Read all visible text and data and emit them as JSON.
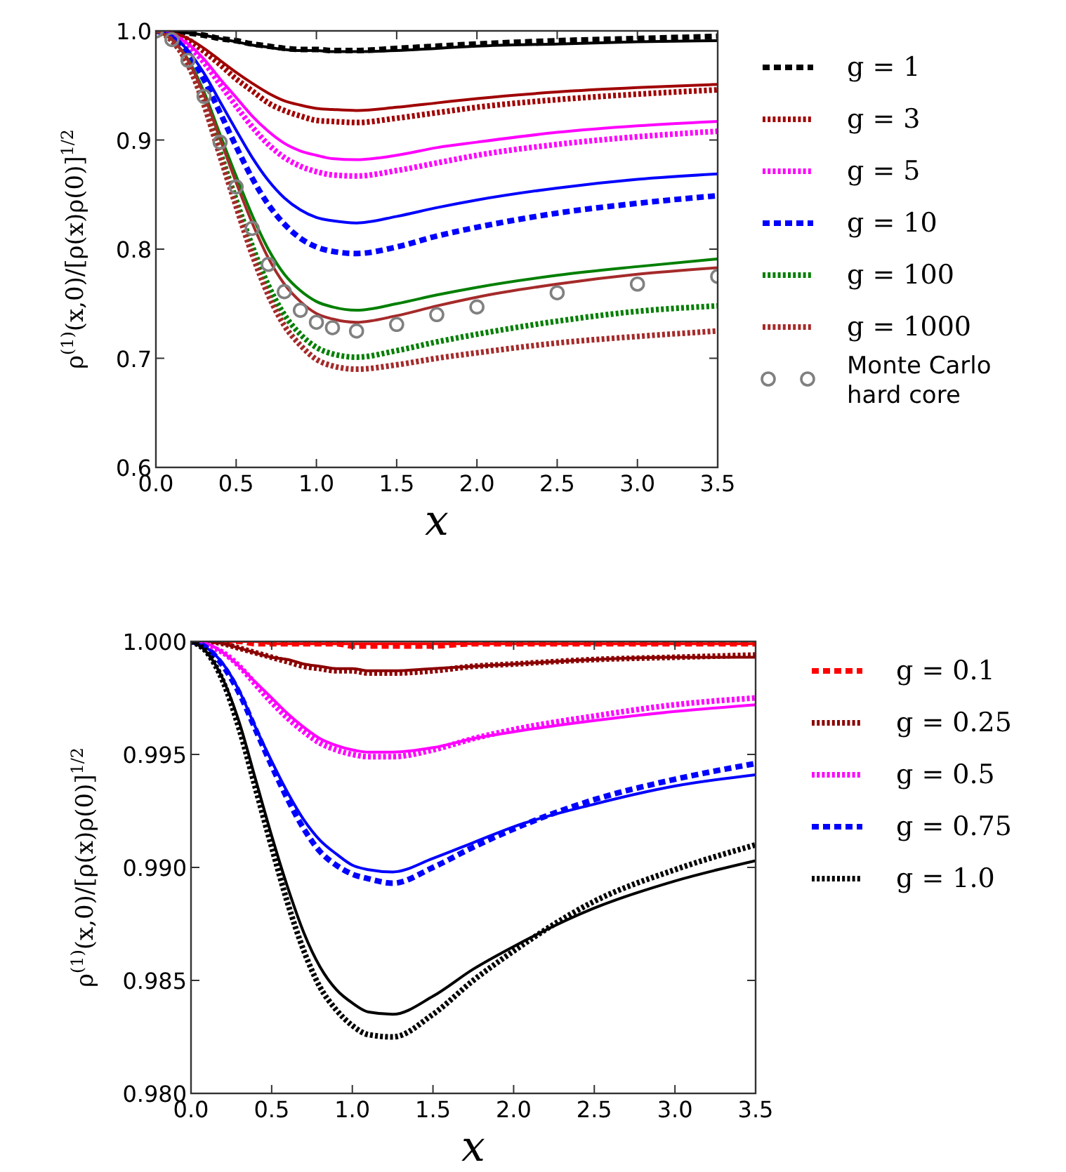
{
  "chart_data": [
    {
      "type": "line",
      "xlabel": "x",
      "ylabel": "ρ$^{(1)}$(x,0)/[ρ(x)ρ(0)]$^{1/2}$",
      "xlim": [
        0,
        3.5
      ],
      "ylim": [
        0.6,
        1.0
      ],
      "xticks": [
        {
          "value": 0,
          "label": "0.0"
        },
        0.5,
        {
          "value": 1,
          "label": "1.0"
        },
        1.5,
        {
          "value": 2,
          "label": "2.0"
        },
        2.5,
        {
          "value": 3,
          "label": "3.0"
        },
        3.5
      ],
      "yticks": [
        0.6,
        0.7,
        0.8,
        0.9,
        {
          "value": 1,
          "label": "1.0"
        }
      ],
      "legend": "right",
      "x": [
        0,
        0.1,
        0.2,
        0.3,
        0.4,
        0.5,
        0.6,
        0.7,
        0.8,
        0.9,
        1.0,
        1.1,
        1.25,
        1.5,
        1.75,
        2.0,
        2.5,
        3.0,
        3.5
      ],
      "series": [
        {
          "color": "#000000",
          "line_style": "solid",
          "values": [
            1,
            0.999,
            0.998,
            0.996,
            0.993,
            0.99,
            0.987,
            0.985,
            0.983,
            0.982,
            0.982,
            0.981,
            0.981,
            0.982,
            0.984,
            0.986,
            0.988,
            0.99,
            0.991
          ]
        },
        {
          "name": "g = 1",
          "color": "#000000",
          "line_style": "dashed",
          "values": [
            1,
            0.999,
            0.998,
            0.996,
            0.993,
            0.991,
            0.988,
            0.986,
            0.984,
            0.983,
            0.983,
            0.982,
            0.982,
            0.984,
            0.986,
            0.988,
            0.991,
            0.993,
            0.995
          ]
        },
        {
          "color": "#a00000",
          "line_style": "solid",
          "values": [
            1,
            0.998,
            0.993,
            0.984,
            0.973,
            0.962,
            0.952,
            0.943,
            0.936,
            0.932,
            0.929,
            0.928,
            0.927,
            0.93,
            0.934,
            0.938,
            0.944,
            0.948,
            0.951
          ]
        },
        {
          "name": "g = 3",
          "color": "#a00000",
          "line_style": "dotted",
          "values": [
            1,
            0.997,
            0.992,
            0.981,
            0.969,
            0.956,
            0.945,
            0.934,
            0.927,
            0.922,
            0.918,
            0.917,
            0.916,
            0.92,
            0.925,
            0.93,
            0.937,
            0.942,
            0.946
          ]
        },
        {
          "color": "#ff00ff",
          "line_style": "solid",
          "values": [
            1,
            0.996,
            0.988,
            0.974,
            0.956,
            0.939,
            0.922,
            0.908,
            0.897,
            0.89,
            0.886,
            0.883,
            0.882,
            0.886,
            0.893,
            0.898,
            0.907,
            0.913,
            0.917
          ]
        },
        {
          "name": "g = 5",
          "color": "#ff00ff",
          "line_style": "dotted",
          "values": [
            1,
            0.996,
            0.987,
            0.971,
            0.951,
            0.931,
            0.912,
            0.896,
            0.884,
            0.876,
            0.871,
            0.868,
            0.867,
            0.872,
            0.879,
            0.886,
            0.896,
            0.903,
            0.908
          ]
        },
        {
          "color": "#0000ff",
          "line_style": "solid",
          "values": [
            1,
            0.995,
            0.982,
            0.961,
            0.935,
            0.909,
            0.884,
            0.863,
            0.847,
            0.836,
            0.829,
            0.826,
            0.824,
            0.83,
            0.838,
            0.845,
            0.856,
            0.864,
            0.869
          ]
        },
        {
          "name": "g = 10",
          "color": "#0000ff",
          "line_style": "dashed",
          "values": [
            1,
            0.994,
            0.98,
            0.955,
            0.925,
            0.894,
            0.865,
            0.841,
            0.823,
            0.81,
            0.802,
            0.798,
            0.796,
            0.802,
            0.812,
            0.82,
            0.833,
            0.842,
            0.849
          ]
        },
        {
          "color": "#007f00",
          "line_style": "solid",
          "values": [
            1,
            0.992,
            0.974,
            0.944,
            0.905,
            0.867,
            0.831,
            0.8,
            0.777,
            0.762,
            0.752,
            0.747,
            0.744,
            0.75,
            0.758,
            0.765,
            0.776,
            0.784,
            0.791
          ]
        },
        {
          "name": "g = 100",
          "color": "#007f00",
          "line_style": "dotted",
          "values": [
            1,
            0.991,
            0.97,
            0.934,
            0.889,
            0.845,
            0.803,
            0.767,
            0.74,
            0.722,
            0.71,
            0.704,
            0.701,
            0.707,
            0.715,
            0.722,
            0.734,
            0.743,
            0.748
          ]
        },
        {
          "color": "#a52a2a",
          "line_style": "solid",
          "values": [
            1,
            0.992,
            0.973,
            0.941,
            0.901,
            0.861,
            0.824,
            0.792,
            0.768,
            0.752,
            0.741,
            0.736,
            0.733,
            0.739,
            0.748,
            0.756,
            0.768,
            0.777,
            0.783
          ]
        },
        {
          "name": "g = 1000",
          "color": "#a52a2a",
          "line_style": "dotted",
          "values": [
            1,
            0.991,
            0.969,
            0.932,
            0.885,
            0.839,
            0.795,
            0.758,
            0.73,
            0.712,
            0.699,
            0.693,
            0.69,
            0.694,
            0.7,
            0.705,
            0.714,
            0.72,
            0.725
          ]
        },
        {
          "name": "Monte Carlo hard core",
          "type": "scatter",
          "marker": "circle",
          "color": "#808080",
          "values": [
            1,
            0.992,
            0.973,
            0.94,
            0.898,
            0.857,
            0.819,
            0.786,
            0.761,
            0.744,
            0.733,
            0.728,
            0.725,
            0.731,
            0.74,
            0.747,
            0.76,
            0.768,
            0.775
          ]
        }
      ]
    },
    {
      "type": "line",
      "xlabel": "x",
      "ylabel": "ρ$^{(1)}$(x,0)/[ρ(x)ρ(0)]$^{1/2}$",
      "xlim": [
        0,
        3.5
      ],
      "ylim": [
        0.98,
        1.0
      ],
      "xticks": [
        {
          "value": 0,
          "label": "0.0"
        },
        0.5,
        {
          "value": 1,
          "label": "1.0"
        },
        1.5,
        {
          "value": 2,
          "label": "2.0"
        },
        2.5,
        {
          "value": 3,
          "label": "3.0"
        },
        3.5
      ],
      "yticks": [
        {
          "value": 0.98,
          "label": "0.980"
        },
        0.985,
        {
          "value": 0.99,
          "label": "0.990"
        },
        0.995,
        {
          "value": 1,
          "label": "1.000"
        }
      ],
      "legend": "right",
      "x": [
        0,
        0.1,
        0.2,
        0.3,
        0.4,
        0.5,
        0.6,
        0.7,
        0.8,
        0.9,
        1.0,
        1.1,
        1.25,
        1.5,
        1.75,
        2.0,
        2.5,
        3.0,
        3.5
      ],
      "series": [
        {
          "color": "#ff0000",
          "line_style": "solid",
          "values": [
            1,
            1,
            1,
            1,
            1,
            0.9999,
            0.9999,
            0.9999,
            0.9999,
            0.9999,
            0.9999,
            0.9999,
            0.9999,
            0.9999,
            0.9999,
            0.9999,
            0.9999,
            0.9999,
            0.9999
          ]
        },
        {
          "name": "g = 0.1",
          "color": "#ff0000",
          "line_style": "dashed",
          "values": [
            1,
            1,
            1,
            1,
            0.9999,
            0.9999,
            0.9999,
            0.9999,
            0.9999,
            0.9999,
            0.9998,
            0.9998,
            0.9998,
            0.9998,
            0.9999,
            0.9999,
            0.9999,
            0.9999,
            0.9999
          ]
        },
        {
          "color": "#8b0000",
          "line_style": "solid",
          "values": [
            1,
            1,
            0.9999,
            0.9997,
            0.9995,
            0.9993,
            0.9992,
            0.999,
            0.9989,
            0.9988,
            0.9988,
            0.9987,
            0.9987,
            0.9988,
            0.9989,
            0.999,
            0.9992,
            0.9993,
            0.9993
          ]
        },
        {
          "name": "g = 0.25",
          "color": "#8b0000",
          "line_style": "dotted",
          "values": [
            1,
            1,
            0.9999,
            0.9997,
            0.9995,
            0.9993,
            0.9991,
            0.9989,
            0.9988,
            0.9987,
            0.9987,
            0.9986,
            0.9986,
            0.9987,
            0.9989,
            0.999,
            0.9992,
            0.9993,
            0.9994
          ]
        },
        {
          "color": "#ff00ff",
          "line_style": "solid",
          "values": [
            1,
            0.9999,
            0.9995,
            0.9989,
            0.9982,
            0.9975,
            0.9968,
            0.9962,
            0.9957,
            0.9954,
            0.9952,
            0.9951,
            0.9951,
            0.9953,
            0.9957,
            0.996,
            0.9965,
            0.9969,
            0.9972
          ]
        },
        {
          "name": "g = 0.5",
          "color": "#ff00ff",
          "line_style": "dotted",
          "values": [
            1,
            0.9998,
            0.9995,
            0.9989,
            0.9981,
            0.9973,
            0.9966,
            0.996,
            0.9955,
            0.9952,
            0.995,
            0.9949,
            0.9949,
            0.9952,
            0.9957,
            0.9961,
            0.9967,
            0.9972,
            0.9975
          ]
        },
        {
          "color": "#0000ff",
          "line_style": "solid",
          "values": [
            1,
            0.9997,
            0.999,
            0.9978,
            0.9962,
            0.9947,
            0.9933,
            0.9921,
            0.9912,
            0.9906,
            0.9901,
            0.9899,
            0.9898,
            0.9904,
            0.9911,
            0.9918,
            0.9928,
            0.9936,
            0.9941
          ]
        },
        {
          "name": "g = 0.75",
          "color": "#0000ff",
          "line_style": "dashed",
          "values": [
            1,
            0.9997,
            0.9989,
            0.9977,
            0.9961,
            0.9945,
            0.993,
            0.9917,
            0.9907,
            0.9901,
            0.9897,
            0.9895,
            0.9893,
            0.99,
            0.9909,
            0.9917,
            0.993,
            0.9939,
            0.9946
          ]
        },
        {
          "color": "#000000",
          "line_style": "solid",
          "values": [
            1,
            0.9995,
            0.9983,
            0.9964,
            0.9939,
            0.9914,
            0.9891,
            0.9871,
            0.9856,
            0.9846,
            0.984,
            0.9836,
            0.9835,
            0.9843,
            0.9855,
            0.9865,
            0.9882,
            0.9894,
            0.9903
          ]
        },
        {
          "name": "g = 1.0",
          "color": "#000000",
          "line_style": "dotted",
          "values": [
            1,
            0.9995,
            0.9982,
            0.9961,
            0.9935,
            0.9909,
            0.9884,
            0.9863,
            0.9847,
            0.9837,
            0.983,
            0.9826,
            0.9825,
            0.9835,
            0.985,
            0.9863,
            0.9885,
            0.9899,
            0.991
          ]
        }
      ]
    }
  ]
}
